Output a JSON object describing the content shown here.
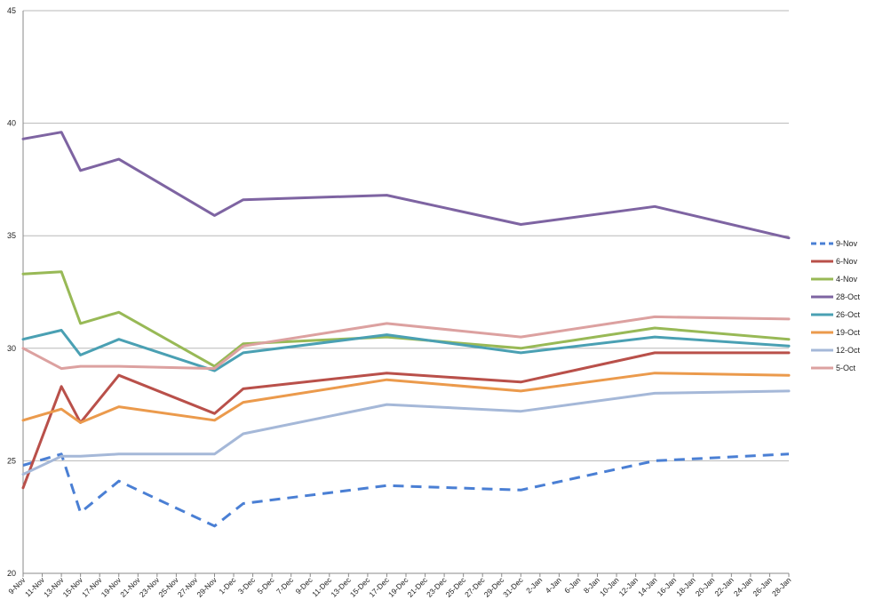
{
  "chart_data": {
    "type": "line",
    "title": "",
    "xlabel": "",
    "ylabel": "",
    "ylim": [
      20,
      45
    ],
    "yticks": [
      20,
      25,
      30,
      35,
      40,
      45
    ],
    "xlim": [
      "9-Nov",
      "28-Jan"
    ],
    "x_tick_labels": [
      "9-Nov",
      "11-Nov",
      "13-Nov",
      "15-Nov",
      "17-Nov",
      "19-Nov",
      "21-Nov",
      "23-Nov",
      "25-Nov",
      "27-Nov",
      "29-Nov",
      "1-Dec",
      "3-Dec",
      "5-Dec",
      "7-Dec",
      "9-Dec",
      "11-Dec",
      "13-Dec",
      "15-Dec",
      "17-Dec",
      "19-Dec",
      "21-Dec",
      "23-Dec",
      "25-Dec",
      "27-Dec",
      "29-Dec",
      "31-Dec",
      "2-Jan",
      "4-Jan",
      "6-Jan",
      "8-Jan",
      "10-Jan",
      "12-Jan",
      "14-Jan",
      "16-Jan",
      "18-Jan",
      "20-Jan",
      "22-Jan",
      "24-Jan",
      "26-Jan",
      "28-Jan"
    ],
    "grid": "horizontal",
    "legend_position": "right",
    "x": [
      "9-Nov",
      "13-Nov",
      "15-Nov",
      "19-Nov",
      "29-Nov",
      "2-Dec",
      "17-Dec",
      "31-Dec",
      "14-Jan",
      "28-Jan"
    ],
    "series": [
      {
        "name": "9-Nov",
        "color": "#4a7fd4",
        "dashed": true,
        "values": [
          24.8,
          25.3,
          22.7,
          24.1,
          22.1,
          23.1,
          23.9,
          23.7,
          25.0,
          25.3
        ]
      },
      {
        "name": "6-Nov",
        "color": "#b9504a",
        "dashed": false,
        "values": [
          23.8,
          28.3,
          26.7,
          28.8,
          27.1,
          28.2,
          28.9,
          28.5,
          29.8,
          29.8
        ]
      },
      {
        "name": "4-Nov",
        "color": "#98b956",
        "dashed": false,
        "values": [
          33.3,
          33.4,
          31.1,
          31.6,
          29.2,
          30.2,
          30.5,
          30.0,
          30.9,
          30.4
        ]
      },
      {
        "name": "28-Oct",
        "color": "#7e64a2",
        "dashed": false,
        "values": [
          39.3,
          39.6,
          37.9,
          38.4,
          35.9,
          36.6,
          36.8,
          35.5,
          36.3,
          34.9
        ]
      },
      {
        "name": "26-Oct",
        "color": "#4aa0b3",
        "dashed": false,
        "values": [
          30.4,
          30.8,
          29.7,
          30.4,
          29.0,
          29.8,
          30.6,
          29.8,
          30.5,
          30.1
        ]
      },
      {
        "name": "19-Oct",
        "color": "#eb9a4c",
        "dashed": false,
        "values": [
          26.8,
          27.3,
          26.7,
          27.4,
          26.8,
          27.6,
          28.6,
          28.1,
          28.9,
          28.8
        ]
      },
      {
        "name": "12-Oct",
        "color": "#a5b8d8",
        "dashed": false,
        "values": [
          24.4,
          25.2,
          25.2,
          25.3,
          25.3,
          26.2,
          27.5,
          27.2,
          28.0,
          28.1
        ]
      },
      {
        "name": "5-Oct",
        "color": "#dca1a0",
        "dashed": false,
        "values": [
          30.0,
          29.1,
          29.2,
          29.2,
          29.1,
          30.1,
          31.1,
          30.5,
          31.4,
          31.3
        ]
      }
    ]
  }
}
